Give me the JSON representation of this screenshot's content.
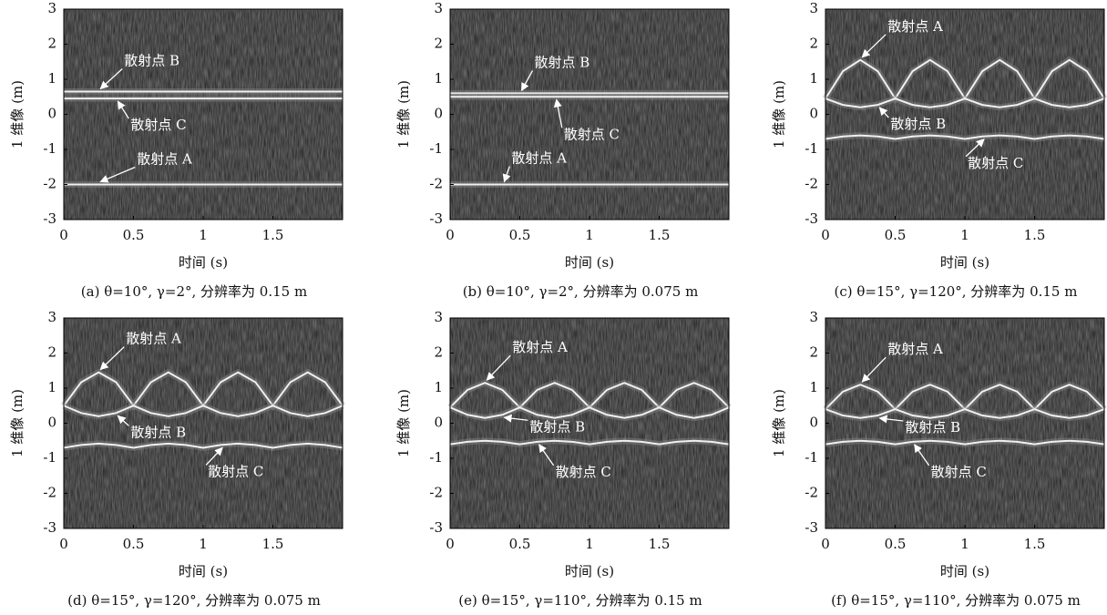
{
  "chart_data": [
    {
      "type": "line",
      "caption": "(a) θ=10°, γ=2°, 分辨率为 0.15 m",
      "xlabel": "时间 (s)",
      "ylabel": "1 维像 (m)",
      "x": [
        0,
        0.125,
        0.25,
        0.375,
        0.5,
        0.625,
        0.75,
        0.875,
        1,
        1.125,
        1.25,
        1.375,
        1.5,
        1.625,
        1.75,
        1.875,
        2
      ],
      "series": [
        {
          "color": "#f0f0f0",
          "values": [
            -2,
            -2,
            -2,
            -2,
            -2,
            -2,
            -2,
            -2,
            -2,
            -2,
            -2,
            -2,
            -2,
            -2,
            -2,
            -2,
            -2
          ]
        },
        {
          "color": "#f0f0f0",
          "values": [
            0.65,
            0.65,
            0.65,
            0.65,
            0.65,
            0.65,
            0.65,
            0.65,
            0.65,
            0.65,
            0.65,
            0.65,
            0.65,
            0.65,
            0.65,
            0.65,
            0.65
          ]
        },
        {
          "color": "#f0f0f0",
          "values": [
            0.45,
            0.45,
            0.45,
            0.45,
            0.45,
            0.45,
            0.45,
            0.45,
            0.45,
            0.45,
            0.45,
            0.45,
            0.45,
            0.45,
            0.45,
            0.45,
            0.45
          ]
        }
      ],
      "annotations": [
        "散射点 A",
        "散射点 B",
        "散射点 C"
      ],
      "xlim": [
        0,
        2
      ],
      "xticks": [
        0,
        0.5,
        1,
        1.5
      ],
      "ylim": [
        -3,
        3
      ],
      "yticks": [
        -3,
        -2,
        -1,
        0,
        1,
        2,
        3
      ]
    },
    {
      "type": "line",
      "caption": "(b) θ=10°, γ=2°, 分辨率为 0.075 m",
      "xlabel": "时间 (s)",
      "ylabel": "1 维像 (m)",
      "x": [
        0,
        0.125,
        0.25,
        0.375,
        0.5,
        0.625,
        0.75,
        0.875,
        1,
        1.125,
        1.25,
        1.375,
        1.5,
        1.625,
        1.75,
        1.875,
        2
      ],
      "series": [
        {
          "color": "#f0f0f0",
          "values": [
            -2,
            -2,
            -2,
            -2,
            -2,
            -2,
            -2,
            -2,
            -2,
            -2,
            -2,
            -2,
            -2,
            -2,
            -2,
            -2,
            -2
          ]
        },
        {
          "color": "#f0f0f0",
          "values": [
            0.6,
            0.6,
            0.6,
            0.6,
            0.6,
            0.6,
            0.6,
            0.6,
            0.6,
            0.6,
            0.6,
            0.6,
            0.6,
            0.6,
            0.6,
            0.6,
            0.6
          ]
        },
        {
          "color": "#f0f0f0",
          "values": [
            0.5,
            0.5,
            0.5,
            0.5,
            0.5,
            0.5,
            0.5,
            0.5,
            0.5,
            0.5,
            0.5,
            0.5,
            0.5,
            0.5,
            0.5,
            0.5,
            0.5
          ]
        }
      ],
      "annotations": [
        "散射点 A",
        "散射点 B",
        "散射点 C"
      ],
      "xlim": [
        0,
        2
      ],
      "xticks": [
        0,
        0.5,
        1,
        1.5
      ],
      "ylim": [
        -3,
        3
      ],
      "yticks": [
        -3,
        -2,
        -1,
        0,
        1,
        2,
        3
      ]
    },
    {
      "type": "line",
      "caption": "(c) θ=15°, γ=120°, 分辨率为 0.15 m",
      "xlabel": "时间 (s)",
      "ylabel": "1 维像 (m)",
      "x": [
        0,
        0.125,
        0.25,
        0.375,
        0.5,
        0.625,
        0.75,
        0.875,
        1,
        1.125,
        1.25,
        1.375,
        1.5,
        1.625,
        1.75,
        1.875,
        2
      ],
      "series": [
        {
          "color": "#f0f0f0",
          "values": [
            0.45,
            1.23,
            1.55,
            1.23,
            0.45,
            1.23,
            1.55,
            1.23,
            0.45,
            1.23,
            1.55,
            1.23,
            0.45,
            1.23,
            1.55,
            1.23,
            0.45
          ]
        },
        {
          "color": "#f0f0f0",
          "values": [
            0.45,
            0.27,
            0.2,
            0.27,
            0.45,
            0.27,
            0.2,
            0.27,
            0.45,
            0.27,
            0.2,
            0.27,
            0.45,
            0.27,
            0.2,
            0.27,
            0.45
          ]
        },
        {
          "color": "#f0f0f0",
          "values": [
            -0.7,
            -0.63,
            -0.6,
            -0.63,
            -0.7,
            -0.63,
            -0.6,
            -0.63,
            -0.7,
            -0.63,
            -0.6,
            -0.63,
            -0.7,
            -0.63,
            -0.6,
            -0.63,
            -0.7
          ]
        }
      ],
      "annotations": [
        "散射点 A",
        "散射点 B",
        "散射点 C"
      ],
      "xlim": [
        0,
        2
      ],
      "xticks": [
        0,
        0.5,
        1,
        1.5
      ],
      "ylim": [
        -3,
        3
      ],
      "yticks": [
        -3,
        -2,
        -1,
        0,
        1,
        2,
        3
      ]
    },
    {
      "type": "line",
      "caption": "(d) θ=15°, γ=120°, 分辨率为 0.075 m",
      "xlabel": "时间 (s)",
      "ylabel": "1 维像 (m)",
      "x": [
        0,
        0.125,
        0.25,
        0.375,
        0.5,
        0.625,
        0.75,
        0.875,
        1,
        1.125,
        1.25,
        1.375,
        1.5,
        1.625,
        1.75,
        1.875,
        2
      ],
      "series": [
        {
          "color": "#f0f0f0",
          "values": [
            0.5,
            1.17,
            1.45,
            1.17,
            0.5,
            1.17,
            1.45,
            1.17,
            0.5,
            1.17,
            1.45,
            1.17,
            0.5,
            1.17,
            1.45,
            1.17,
            0.5
          ]
        },
        {
          "color": "#f0f0f0",
          "values": [
            0.5,
            0.29,
            0.2,
            0.29,
            0.5,
            0.29,
            0.2,
            0.29,
            0.5,
            0.29,
            0.2,
            0.29,
            0.5,
            0.29,
            0.2,
            0.29,
            0.5
          ]
        },
        {
          "color": "#f0f0f0",
          "values": [
            -0.7,
            -0.62,
            -0.58,
            -0.62,
            -0.7,
            -0.62,
            -0.58,
            -0.62,
            -0.7,
            -0.62,
            -0.58,
            -0.62,
            -0.7,
            -0.62,
            -0.58,
            -0.62,
            -0.7
          ]
        }
      ],
      "annotations": [
        "散射点 A",
        "散射点 B",
        "散射点 C"
      ],
      "xlim": [
        0,
        2
      ],
      "xticks": [
        0,
        0.5,
        1,
        1.5
      ],
      "ylim": [
        -3,
        3
      ],
      "yticks": [
        -3,
        -2,
        -1,
        0,
        1,
        2,
        3
      ]
    },
    {
      "type": "line",
      "caption": "(e) θ=15°, γ=110°, 分辨率为 0.15 m",
      "xlabel": "时间 (s)",
      "ylabel": "1 维像 (m)",
      "x": [
        0,
        0.125,
        0.25,
        0.375,
        0.5,
        0.625,
        0.75,
        0.875,
        1,
        1.125,
        1.25,
        1.375,
        1.5,
        1.625,
        1.75,
        1.875,
        2
      ],
      "series": [
        {
          "color": "#f0f0f0",
          "values": [
            0.45,
            0.95,
            1.15,
            0.95,
            0.45,
            0.95,
            1.15,
            0.95,
            0.45,
            0.95,
            1.15,
            0.95,
            0.45,
            0.95,
            1.15,
            0.95,
            0.45
          ]
        },
        {
          "color": "#f0f0f0",
          "values": [
            0.45,
            0.24,
            0.15,
            0.24,
            0.45,
            0.24,
            0.15,
            0.24,
            0.45,
            0.24,
            0.15,
            0.24,
            0.45,
            0.24,
            0.15,
            0.24,
            0.45
          ]
        },
        {
          "color": "#f0f0f0",
          "values": [
            -0.6,
            -0.53,
            -0.5,
            -0.53,
            -0.6,
            -0.53,
            -0.5,
            -0.53,
            -0.6,
            -0.53,
            -0.5,
            -0.53,
            -0.6,
            -0.53,
            -0.5,
            -0.53,
            -0.6
          ]
        }
      ],
      "annotations": [
        "散射点 A",
        "散射点 B",
        "散射点 C"
      ],
      "xlim": [
        0,
        2
      ],
      "xticks": [
        0,
        0.5,
        1,
        1.5
      ],
      "ylim": [
        -3,
        3
      ],
      "yticks": [
        -3,
        -2,
        -1,
        0,
        1,
        2,
        3
      ]
    },
    {
      "type": "line",
      "caption": "(f) θ=15°, γ=110°, 分辨率为 0.075 m",
      "xlabel": "时间 (s)",
      "ylabel": "1 维像 (m)",
      "x": [
        0,
        0.125,
        0.25,
        0.375,
        0.5,
        0.625,
        0.75,
        0.875,
        1,
        1.125,
        1.25,
        1.375,
        1.5,
        1.625,
        1.75,
        1.875,
        2
      ],
      "series": [
        {
          "color": "#f0f0f0",
          "values": [
            0.4,
            0.9,
            1.1,
            0.9,
            0.4,
            0.9,
            1.1,
            0.9,
            0.4,
            0.9,
            1.1,
            0.9,
            0.4,
            0.9,
            1.1,
            0.9,
            0.4
          ]
        },
        {
          "color": "#f0f0f0",
          "values": [
            0.4,
            0.22,
            0.15,
            0.22,
            0.4,
            0.22,
            0.15,
            0.22,
            0.4,
            0.22,
            0.15,
            0.22,
            0.4,
            0.22,
            0.15,
            0.22,
            0.4
          ]
        },
        {
          "color": "#f0f0f0",
          "values": [
            -0.6,
            -0.53,
            -0.5,
            -0.53,
            -0.6,
            -0.53,
            -0.5,
            -0.53,
            -0.6,
            -0.53,
            -0.5,
            -0.53,
            -0.6,
            -0.53,
            -0.5,
            -0.53,
            -0.6
          ]
        }
      ],
      "annotations": [
        "散射点 A",
        "散射点 B",
        "散射点 C"
      ],
      "xlim": [
        0,
        2
      ],
      "xticks": [
        0,
        0.5,
        1,
        1.5
      ],
      "ylim": [
        -3,
        3
      ],
      "yticks": [
        -3,
        -2,
        -1,
        0,
        1,
        2,
        3
      ]
    }
  ]
}
